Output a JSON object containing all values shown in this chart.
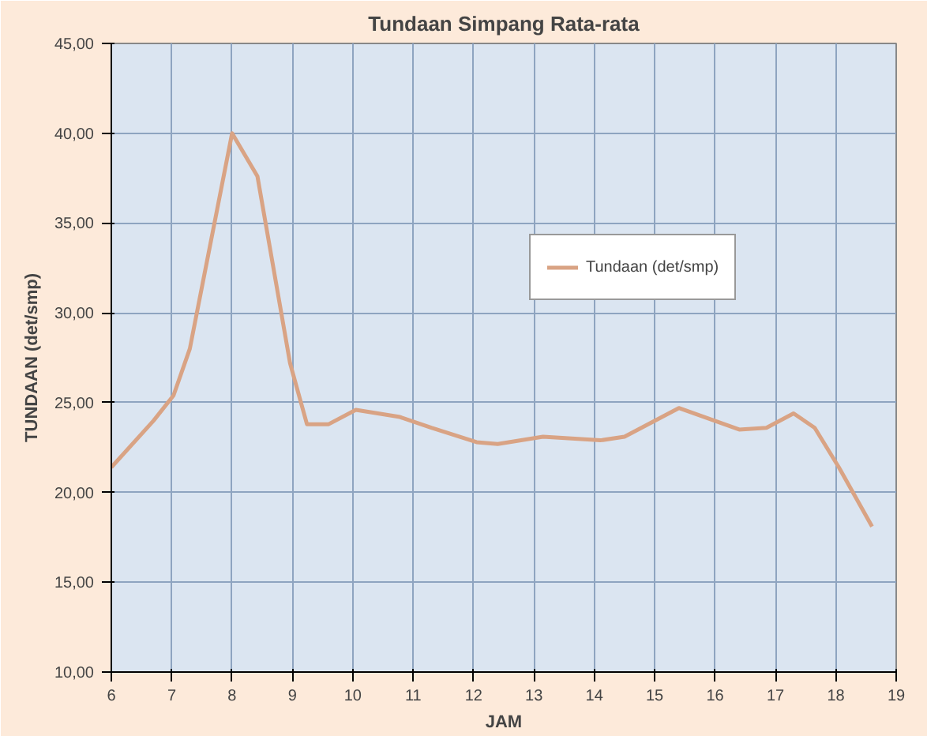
{
  "chart_data": {
    "type": "line",
    "title": "Tundaan Simpang Rata-rata",
    "xlabel": "JAM",
    "ylabel": "TUNDAAN (det/smp)",
    "series": [
      {
        "name": "Tundaan (det/smp)",
        "color": "#d9a384",
        "x": [
          6,
          6.7,
          7.03,
          7.3,
          8.0,
          8.42,
          8.96,
          9.24,
          9.6,
          10.05,
          10.78,
          11.3,
          12.05,
          12.4,
          13.15,
          14.1,
          14.5,
          15.4,
          16.4,
          16.85,
          17.3,
          17.65,
          18.05,
          18.6
        ],
        "values": [
          21.4,
          24.0,
          25.4,
          28.0,
          40.0,
          37.6,
          27.2,
          23.8,
          23.8,
          24.6,
          24.2,
          23.6,
          22.8,
          22.7,
          23.1,
          22.9,
          23.1,
          24.7,
          23.5,
          23.6,
          24.4,
          23.6,
          21.4,
          18.1
        ]
      }
    ],
    "xlim": [
      6,
      19
    ],
    "xticks": [
      6,
      7,
      8,
      9,
      10,
      11,
      12,
      13,
      14,
      15,
      16,
      17,
      18,
      19
    ],
    "ylim": [
      10,
      45
    ],
    "yticks": [
      {
        "value": 10,
        "label": "10,00"
      },
      {
        "value": 15,
        "label": "15,00"
      },
      {
        "value": 20,
        "label": "20,00"
      },
      {
        "value": 25,
        "label": "25,00"
      },
      {
        "value": 30,
        "label": "30,00"
      },
      {
        "value": 35,
        "label": "35,00"
      },
      {
        "value": 40,
        "label": "40,00"
      },
      {
        "value": 45,
        "label": "45,00"
      }
    ],
    "grid": true,
    "legend": "top",
    "marker": "none",
    "line_style": "solid"
  }
}
